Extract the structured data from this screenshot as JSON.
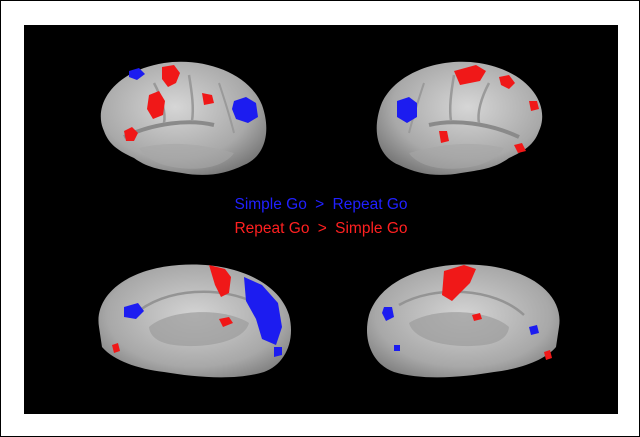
{
  "legend": {
    "line1": {
      "left": "Simple Go",
      "sep": ">",
      "right": "Repeat Go"
    },
    "line2": {
      "left": "Repeat Go",
      "sep": ">",
      "right": "Simple Go"
    }
  },
  "colors": {
    "background": "#000000",
    "cortex": "#b8b8b8",
    "simple_go_gt_repeat_go": "#1c1cf0",
    "repeat_go_gt_simple_go": "#f01818",
    "legend_text_line1": "#2020ff",
    "legend_text_line2": "#ff2020"
  },
  "views": [
    {
      "name": "left-lateral"
    },
    {
      "name": "right-lateral"
    },
    {
      "name": "left-medial"
    },
    {
      "name": "right-medial"
    }
  ]
}
